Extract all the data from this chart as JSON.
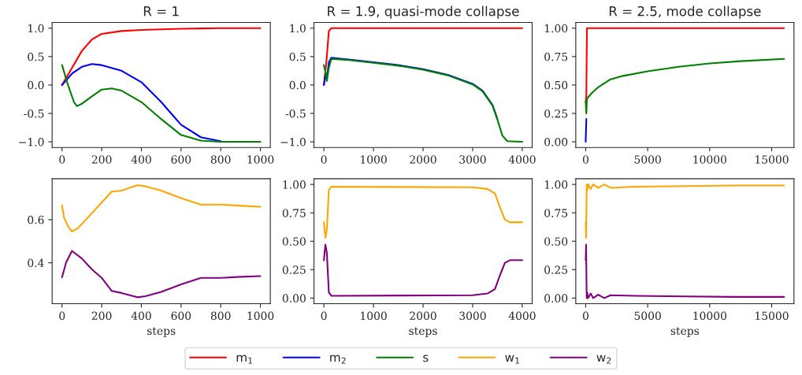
{
  "chart_data": [
    {
      "type": "line",
      "title": "R = 1",
      "xlim": [
        -50,
        1050
      ],
      "xticks": [
        0,
        200,
        400,
        600,
        800,
        1000
      ],
      "ylim": [
        -1.1,
        1.1
      ],
      "yticks": [
        {
          "value": -1,
          "label": "−1.0"
        },
        -0.5,
        {
          "value": 0,
          "label": "0.0"
        },
        0.5,
        {
          "value": 1,
          "label": "1.0"
        }
      ],
      "grid": false,
      "legend": "bottom",
      "series": [
        {
          "name": "m$_{1}$",
          "color": "#ff0000",
          "x": [
            0,
            50,
            100,
            150,
            200,
            300,
            400,
            600,
            800,
            1000
          ],
          "values": [
            0,
            0.3,
            0.6,
            0.8,
            0.9,
            0.95,
            0.97,
            0.99,
            1.0,
            1.0
          ]
        },
        {
          "name": "m$_{2}$",
          "color": "#0000ff",
          "x": [
            0,
            50,
            100,
            150,
            200,
            300,
            400,
            500,
            550,
            600,
            700,
            800
          ],
          "values": [
            0,
            0.2,
            0.32,
            0.37,
            0.35,
            0.25,
            0.05,
            -0.3,
            -0.5,
            -0.7,
            -0.92,
            -0.99
          ]
        },
        {
          "name": "s",
          "color": "#008000",
          "x": [
            0,
            30,
            60,
            75,
            100,
            150,
            200,
            250,
            300,
            400,
            500,
            600,
            700,
            800,
            1000
          ],
          "values": [
            0.35,
            0.0,
            -0.3,
            -0.37,
            -0.33,
            -0.2,
            -0.08,
            -0.06,
            -0.1,
            -0.3,
            -0.6,
            -0.88,
            -0.98,
            -1.0,
            -1.0
          ]
        }
      ]
    },
    {
      "type": "line",
      "title": "R = 1.9, quasi-mode collapse",
      "xlim": [
        -200,
        4200
      ],
      "xticks": [
        0,
        1000,
        2000,
        3000,
        4000
      ],
      "ylim": [
        -1.1,
        1.1
      ],
      "yticks": [
        {
          "value": -1,
          "label": "−1.0"
        },
        -0.5,
        {
          "value": 0,
          "label": "0.0"
        },
        0.5,
        {
          "value": 1,
          "label": "1.0"
        }
      ],
      "grid": false,
      "series": [
        {
          "color": "#ff0000",
          "x": [
            0,
            50,
            100,
            150,
            4000
          ],
          "values": [
            0,
            0.4,
            0.95,
            1.0,
            1.0
          ]
        },
        {
          "color": "#0000ff",
          "x": [
            0,
            40,
            60,
            100,
            150,
            500,
            1000,
            1500,
            2000,
            2500,
            3000,
            3200,
            3400,
            3500
          ],
          "values": [
            0,
            0.2,
            0.1,
            0.4,
            0.48,
            0.45,
            0.4,
            0.35,
            0.28,
            0.18,
            0.02,
            -0.1,
            -0.35,
            -0.6
          ]
        },
        {
          "color": "#008000",
          "x": [
            0,
            40,
            60,
            100,
            150,
            500,
            1000,
            1500,
            2000,
            2500,
            3000,
            3200,
            3400,
            3500,
            3600,
            3700,
            4000
          ],
          "values": [
            0.35,
            0.2,
            0.07,
            0.3,
            0.46,
            0.44,
            0.39,
            0.34,
            0.27,
            0.17,
            0.01,
            -0.11,
            -0.36,
            -0.61,
            -0.89,
            -0.99,
            -1.0
          ]
        }
      ]
    },
    {
      "type": "line",
      "title": "R = 2.5, mode collapse",
      "xlim": [
        -800,
        16800
      ],
      "xticks": [
        0,
        5000,
        10000,
        15000
      ],
      "ylim": [
        -0.05,
        1.05
      ],
      "yticks": [
        {
          "value": 0,
          "label": "0.00"
        },
        {
          "value": 0.25,
          "label": "0.25"
        },
        {
          "value": 0.5,
          "label": "0.50"
        },
        {
          "value": 0.75,
          "label": "0.75"
        },
        {
          "value": 1,
          "label": "1.00"
        }
      ],
      "grid": false,
      "series": [
        {
          "color": "#ff0000",
          "x": [
            0,
            50,
            100,
            16000
          ],
          "values": [
            0.35,
            0.4,
            1.0,
            1.0
          ]
        },
        {
          "color": "#0000ff",
          "x": [
            0,
            50
          ],
          "values": [
            0,
            0.2
          ]
        },
        {
          "color": "#008000",
          "x": [
            0,
            50,
            100,
            500,
            1000,
            2000,
            3000,
            5000,
            7500,
            10000,
            12500,
            16000
          ],
          "values": [
            0.35,
            0.25,
            0.38,
            0.43,
            0.48,
            0.55,
            0.58,
            0.62,
            0.66,
            0.69,
            0.71,
            0.73
          ]
        }
      ]
    },
    {
      "type": "line",
      "xlabel": "steps",
      "xlim": [
        -50,
        1050
      ],
      "xticks": [
        0,
        200,
        400,
        600,
        800,
        1000
      ],
      "ylim": [
        0.21,
        0.79
      ],
      "yticks": [
        0.4,
        0.6
      ],
      "grid": false,
      "legend": "bottom",
      "series": [
        {
          "name": "w$_{1}$",
          "color": "#ffa500",
          "x": [
            0,
            10,
            30,
            50,
            80,
            120,
            200,
            250,
            300,
            380,
            420,
            500,
            600,
            700,
            800,
            900,
            1000
          ],
          "values": [
            0.667,
            0.61,
            0.57,
            0.545,
            0.56,
            0.6,
            0.68,
            0.73,
            0.735,
            0.76,
            0.755,
            0.735,
            0.7,
            0.67,
            0.67,
            0.665,
            0.66
          ]
        },
        {
          "name": "w$_{2}$",
          "color": "#800080",
          "x": [
            0,
            20,
            50,
            100,
            150,
            200,
            250,
            300,
            380,
            420,
            500,
            600,
            700,
            800,
            900,
            1000
          ],
          "values": [
            0.333,
            0.4,
            0.455,
            0.42,
            0.37,
            0.33,
            0.27,
            0.26,
            0.24,
            0.245,
            0.265,
            0.3,
            0.33,
            0.33,
            0.335,
            0.338
          ]
        }
      ]
    },
    {
      "type": "line",
      "xlabel": "steps",
      "xlim": [
        -200,
        4200
      ],
      "xticks": [
        0,
        1000,
        2000,
        3000,
        4000
      ],
      "ylim": [
        -0.05,
        1.05
      ],
      "yticks": [
        {
          "value": 0,
          "label": "0.00"
        },
        {
          "value": 0.25,
          "label": "0.25"
        },
        {
          "value": 0.5,
          "label": "0.50"
        },
        {
          "value": 0.75,
          "label": "0.75"
        },
        {
          "value": 1,
          "label": "1.00"
        }
      ],
      "grid": false,
      "series": [
        {
          "color": "#ffa500",
          "x": [
            0,
            30,
            60,
            100,
            150,
            3000,
            3300,
            3450,
            3550,
            3650,
            3750,
            4000
          ],
          "values": [
            0.667,
            0.53,
            0.6,
            0.95,
            0.98,
            0.975,
            0.96,
            0.92,
            0.8,
            0.69,
            0.667,
            0.667
          ]
        },
        {
          "color": "#800080",
          "x": [
            0,
            30,
            60,
            100,
            150,
            3000,
            3300,
            3450,
            3550,
            3650,
            3750,
            4000
          ],
          "values": [
            0.333,
            0.47,
            0.4,
            0.05,
            0.02,
            0.025,
            0.04,
            0.08,
            0.2,
            0.31,
            0.333,
            0.333
          ]
        }
      ]
    },
    {
      "type": "line",
      "xlabel": "steps",
      "xlim": [
        -800,
        16800
      ],
      "xticks": [
        0,
        5000,
        10000,
        15000
      ],
      "ylim": [
        -0.05,
        1.05
      ],
      "yticks": [
        {
          "value": 0,
          "label": "0.00"
        },
        {
          "value": 0.25,
          "label": "0.25"
        },
        {
          "value": 0.5,
          "label": "0.50"
        },
        {
          "value": 0.75,
          "label": "0.75"
        },
        {
          "value": 1,
          "label": "1.00"
        }
      ],
      "grid": false,
      "series": [
        {
          "color": "#ffa500",
          "x": [
            0,
            30,
            80,
            120,
            200,
            400,
            600,
            1000,
            1500,
            2000,
            4000,
            8000,
            12000,
            16000
          ],
          "values": [
            0.667,
            0.53,
            1.0,
            0.95,
            1.0,
            0.96,
            1.0,
            0.97,
            1.0,
            0.97,
            0.98,
            0.985,
            0.99,
            0.99
          ]
        },
        {
          "color": "#800080",
          "x": [
            0,
            30,
            80,
            120,
            200,
            400,
            600,
            1000,
            1500,
            2000,
            4000,
            8000,
            12000,
            16000
          ],
          "values": [
            0.333,
            0.47,
            0.0,
            0.05,
            0.0,
            0.04,
            0.0,
            0.03,
            0.0,
            0.025,
            0.02,
            0.015,
            0.01,
            0.01
          ]
        }
      ]
    }
  ]
}
